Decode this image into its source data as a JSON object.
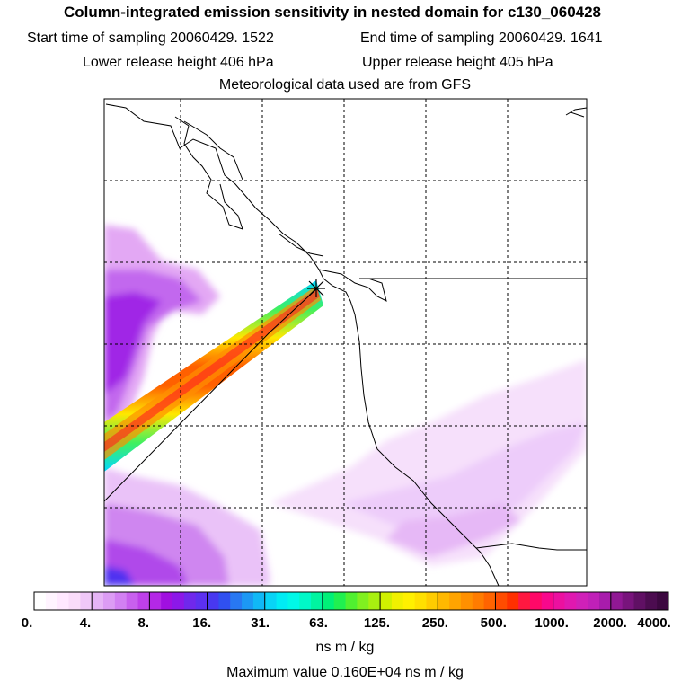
{
  "header": {
    "title": "Column-integrated emission sensitivity in nested domain for c130_060428",
    "start_time": "Start time of sampling 20060429.  1522",
    "end_time": "End time of sampling 20060429.  1641",
    "lower_height": "Lower release height  406 hPa",
    "upper_height": "Upper release height  405 hPa",
    "met_data": "Meteorological data used are from GFS"
  },
  "chart_data": {
    "type": "heatmap",
    "title": "Column-integrated emission sensitivity in nested domain for c130_060428",
    "colorbar": {
      "unit": "ns m / kg",
      "tick_labels": [
        "0.",
        "4.",
        "8.",
        "16.",
        "31.",
        "63.",
        "125.",
        "250.",
        "500.",
        "1000.",
        "2000.",
        "4000."
      ],
      "colors": [
        "#ffffff",
        "#fff4ff",
        "#ffe8ff",
        "#fadcfa",
        "#f0c8f8",
        "#e6b4f6",
        "#dc9cf4",
        "#d280f2",
        "#c860ee",
        "#be40ea",
        "#b428e6",
        "#a010e0",
        "#8c18e8",
        "#7028ec",
        "#5c30f0",
        "#4838f0",
        "#3050f0",
        "#2878f2",
        "#1c98f4",
        "#10b8f6",
        "#08d4f6",
        "#00ecf4",
        "#00f8e8",
        "#00f8c8",
        "#00f4a0",
        "#00f078",
        "#20f050",
        "#50f030",
        "#80f020",
        "#a8f010",
        "#d0f000",
        "#f0f000",
        "#fff000",
        "#ffe000",
        "#ffcc00",
        "#ffb800",
        "#ffa400",
        "#ff9000",
        "#ff7c00",
        "#ff6400",
        "#ff4c00",
        "#ff3000",
        "#ff1840",
        "#ff0868",
        "#f8088c",
        "#ec10a0",
        "#e018b0",
        "#d020b8",
        "#c020b8",
        "#a81cac",
        "#901894",
        "#78147c",
        "#601064",
        "#4c0c50",
        "#3c0840"
      ],
      "maximum": "Maximum value  0.160E+04 ns m / kg"
    },
    "receptor": "star marker at release location",
    "grid": true
  }
}
